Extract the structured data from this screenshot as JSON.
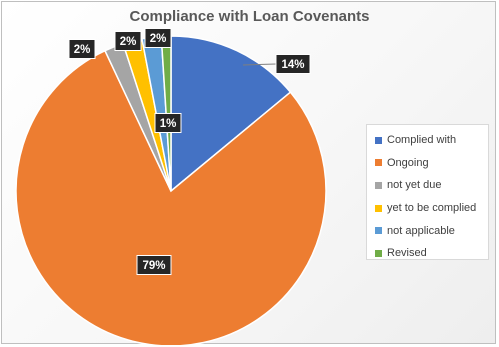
{
  "chart_data": {
    "type": "pie",
    "title": "Compliance with Loan Covenants",
    "slices": [
      {
        "name": "Complied with",
        "value": 14,
        "label": "14%",
        "color": "#4472c4"
      },
      {
        "name": "Ongoing",
        "value": 79,
        "label": "79%",
        "color": "#ed7d31"
      },
      {
        "name": "not yet due",
        "value": 2,
        "label": "2%",
        "color": "#a5a5a5"
      },
      {
        "name": "yet to be complied",
        "value": 2,
        "label": "2%",
        "color": "#ffc000"
      },
      {
        "name": "not applicable",
        "value": 2,
        "label": "2%",
        "color": "#5b9bd5"
      },
      {
        "name": "Revised",
        "value": 1,
        "label": "1%",
        "color": "#70ad47"
      }
    ],
    "legend_position": "right"
  }
}
